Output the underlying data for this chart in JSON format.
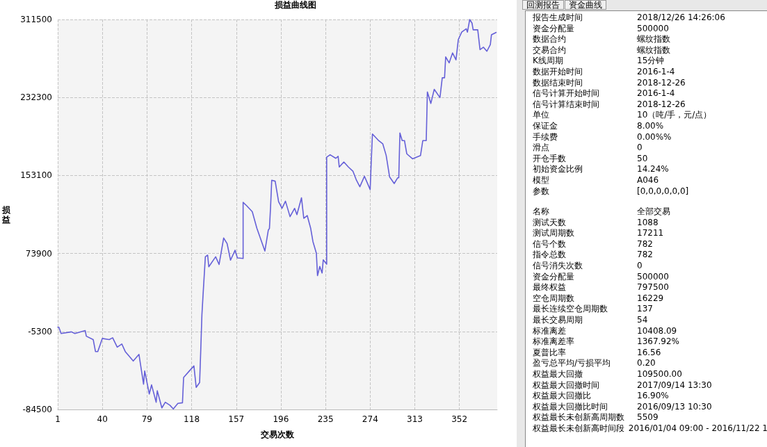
{
  "chart_data": [
    {
      "type": "line",
      "title": "损益曲线图",
      "xlabel": "交易次数",
      "ylabel": "损益",
      "xlim": [
        1,
        385
      ],
      "xticks": [
        1,
        40,
        79,
        118,
        157,
        196,
        235,
        274,
        313,
        352
      ],
      "ylim": [
        -84500,
        311500
      ],
      "yticks": [
        -84500,
        -5300,
        73900,
        153100,
        232300,
        311500
      ],
      "grid": true,
      "marker": "none",
      "line_style": "solid",
      "series": [
        {
          "color": "#6560d8",
          "x": [
            1,
            2,
            4,
            13,
            16,
            25,
            26,
            32,
            34,
            36,
            40,
            46,
            49,
            53,
            57,
            60,
            67,
            72,
            76,
            77,
            81,
            83,
            87,
            88,
            92,
            95,
            99,
            102,
            106,
            110,
            111,
            116,
            120,
            122,
            125,
            126,
            127,
            128,
            130,
            132,
            133,
            139,
            142,
            146,
            149,
            152,
            156,
            158,
            163,
            163,
            166,
            171,
            175,
            182,
            185,
            186,
            187,
            188,
            191,
            194,
            197,
            200,
            204,
            208,
            210,
            214,
            216,
            219,
            222,
            224,
            227,
            228,
            230,
            232,
            233,
            236,
            236,
            239,
            244,
            246,
            247,
            251,
            255,
            259,
            262,
            265,
            269,
            274,
            275,
            276,
            281,
            285,
            288,
            291,
            295,
            298,
            299,
            300,
            302,
            304,
            306,
            311,
            318,
            320,
            323,
            324,
            327,
            330,
            335,
            337,
            339,
            340,
            343,
            346,
            349,
            351,
            354,
            358,
            359,
            361,
            363,
            364,
            368,
            370,
            373,
            376,
            379,
            380,
            384
          ],
          "values": [
            -1000,
            -1000,
            -7400,
            -5700,
            -7400,
            -4400,
            -10100,
            -13500,
            -25700,
            -25700,
            -12400,
            -13500,
            -11700,
            -21200,
            -18000,
            -25700,
            -35300,
            -28600,
            -58800,
            -45400,
            -68800,
            -59500,
            -77200,
            -65500,
            -82900,
            -77200,
            -80200,
            -84000,
            -78300,
            -77700,
            -52000,
            -45400,
            -40300,
            -62100,
            -57100,
            -23600,
            11700,
            31900,
            70500,
            72200,
            60400,
            70500,
            62700,
            89600,
            83900,
            67100,
            77200,
            69400,
            68800,
            125800,
            122500,
            116300,
            99600,
            76400,
            97600,
            99300,
            121400,
            148300,
            147300,
            126400,
            119700,
            127000,
            111300,
            119700,
            113300,
            130400,
            109600,
            112400,
            99600,
            86000,
            74100,
            51400,
            60700,
            54000,
            67400,
            63000,
            171700,
            174100,
            170500,
            172600,
            161700,
            166800,
            161700,
            157300,
            148300,
            141600,
            152300,
            138800,
            168400,
            195200,
            189000,
            185300,
            173400,
            151600,
            144900,
            150700,
            150700,
            196300,
            188500,
            188500,
            175100,
            170000,
            173400,
            188500,
            188500,
            237900,
            226200,
            240600,
            232200,
            252300,
            252300,
            273500,
            267400,
            277500,
            270500,
            291000,
            298700,
            302000,
            298700,
            311500,
            307800,
            301000,
            301000,
            280900,
            283300,
            279200,
            286000,
            296000,
            298300
          ]
        }
      ]
    },
    {
      "type": "other",
      "annotations": [
        "回测报告",
        "资金曲线"
      ]
    },
    {
      "type": "other",
      "annotations": [
        "报告生成时间",
        "2018/12/26 14:26:06",
        "资金分配量",
        "500000",
        "数据合约",
        "螺纹指数",
        "交易合约",
        "螺纹指数",
        "K线周期",
        "15分钟",
        "数据开始时间",
        "2016-1-4",
        "数据结束时间",
        "2018-12-26",
        "信号计算开始时间",
        "2016-1-4",
        "信号计算结束时间",
        "2018-12-26",
        "单位",
        "10（吨/手，元/点）",
        "保证金",
        "8.00%",
        "手续费",
        "0.00%%",
        "滑点",
        "0",
        "开仓手数",
        "50",
        "初始资金比例",
        "14.24%",
        "模型",
        "A046",
        "参数",
        "[0,0,0,0,0,0]"
      ]
    },
    {
      "type": "other",
      "annotations": [
        "名称",
        "全部交易",
        "测试天数",
        "1088",
        "测试周期数",
        "17211",
        "信号个数",
        "782",
        "指令总数",
        "782",
        "信号消失次数",
        "0",
        "资金分配量",
        "500000",
        "最终权益",
        "797500",
        "空仓周期数",
        "16229",
        "最长连续空仓周期数",
        "137",
        "最长交易周期",
        "54",
        "标准离差",
        "10408.09",
        "标准离差率",
        "1367.92%",
        "夏普比率",
        "16.56",
        "盈亏总平均/亏损平均",
        "0.20",
        "权益最大回撤",
        "109500.00",
        "权益最大回撤时间",
        "2017/09/14 13:30",
        "权益最大回撤比",
        "16.90%",
        "权益最大回撤比时间",
        "2016/09/13 10:30",
        "权益最长未创新高周期数",
        "5509",
        "权益最长未创新高时间段",
        "2016/01/04 09:00 - 2016/11/22 1"
      ]
    }
  ]
}
